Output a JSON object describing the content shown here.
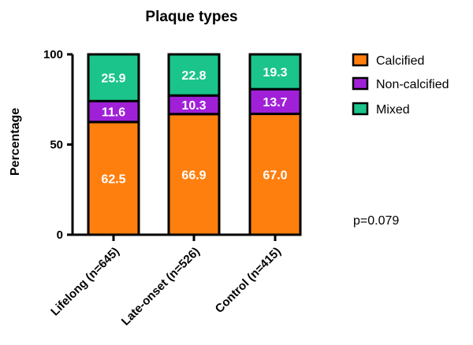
{
  "chart_data": {
    "type": "bar",
    "stacked": true,
    "title": "Plaque types",
    "ylabel": "Percentage",
    "xlabel": "",
    "ylim": [
      0,
      100
    ],
    "yticks": [
      0,
      50,
      100
    ],
    "categories": [
      "Lifelong (n=645)",
      "Late-onset (n=526)",
      "Control (n=415)"
    ],
    "series": [
      {
        "name": "Calcified",
        "values": [
          62.5,
          66.9,
          67.0
        ],
        "labels": [
          "62.5",
          "66.9",
          "67.0"
        ],
        "color": "#ff7f0e"
      },
      {
        "name": "Non-calcified",
        "values": [
          11.6,
          10.3,
          13.7
        ],
        "labels": [
          "11.6",
          "10.3",
          "13.7"
        ],
        "color": "#a020d8"
      },
      {
        "name": "Mixed",
        "values": [
          25.9,
          22.8,
          19.3
        ],
        "labels": [
          "25.9",
          "22.8",
          "19.3"
        ],
        "color": "#1ac48a"
      }
    ],
    "legend_position": "right",
    "grid": false,
    "annotation": "p=0.079"
  }
}
